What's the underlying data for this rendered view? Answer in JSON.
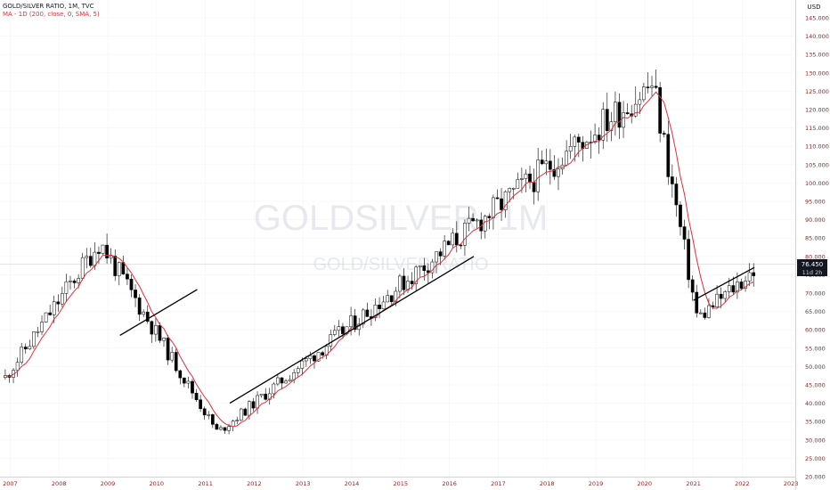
{
  "legend": {
    "symbol_line": "GOLD/SILVER RATIO, 1M, TVC",
    "ma_line": "MA - 1D (200, close, 0, SMA, 5)"
  },
  "watermark": {
    "main": "GOLDSILVER, 1M",
    "sub": "GOLD/SILVER RATIO"
  },
  "price_label": {
    "value": "76.450",
    "countdown": "11d 2h",
    "currency": "USD"
  },
  "colors": {
    "candle": "#000000",
    "ma": "#e0303a",
    "trendline": "#000000",
    "axis_text": "#8b1d1d",
    "price_tag_bg": "#131722"
  },
  "chart_data": {
    "type": "candlestick",
    "title": "GOLD/SILVER RATIO, 1M, TVC",
    "xlabel": "",
    "ylabel": "USD",
    "ylim": [
      20,
      145
    ],
    "x_ticks": [
      "2007",
      "2008",
      "2009",
      "2010",
      "2011",
      "2012",
      "2013",
      "2014",
      "2015",
      "2016",
      "2017",
      "2018",
      "2019",
      "2020",
      "2021",
      "2022",
      "2023"
    ],
    "y_ticks": [
      "20.000",
      "25.000",
      "30.000",
      "35.000",
      "40.000",
      "45.000",
      "50.000",
      "55.000",
      "60.000",
      "65.000",
      "70.000",
      "75.000",
      "80.000",
      "85.000",
      "90.000",
      "95.000",
      "100.000",
      "105.000",
      "110.000",
      "115.000",
      "120.000",
      "125.000",
      "130.000",
      "135.000",
      "140.000",
      "145.000"
    ],
    "last_value": 76.45,
    "key_points": [
      {
        "date": "2008-11",
        "value": 84
      },
      {
        "date": "2011-04",
        "value": 32
      },
      {
        "date": "2016-02",
        "value": 84
      },
      {
        "date": "2020-03",
        "value": 127
      },
      {
        "date": "2021-02",
        "value": 63
      },
      {
        "date": "2022-04",
        "value": 76.45
      }
    ],
    "trendlines": [
      {
        "from": [
          "2009-04",
          58.5
        ],
        "to": [
          "2010-11",
          71
        ]
      },
      {
        "from": [
          "2011-07",
          40
        ],
        "to": [
          "2016-07",
          80
        ]
      },
      {
        "from": [
          "2021-01",
          68
        ],
        "to": [
          "2022-04",
          77
        ]
      }
    ],
    "series": [
      {
        "name": "MA - 1D (200, close, 0, SMA, 5)",
        "type": "line"
      }
    ]
  }
}
